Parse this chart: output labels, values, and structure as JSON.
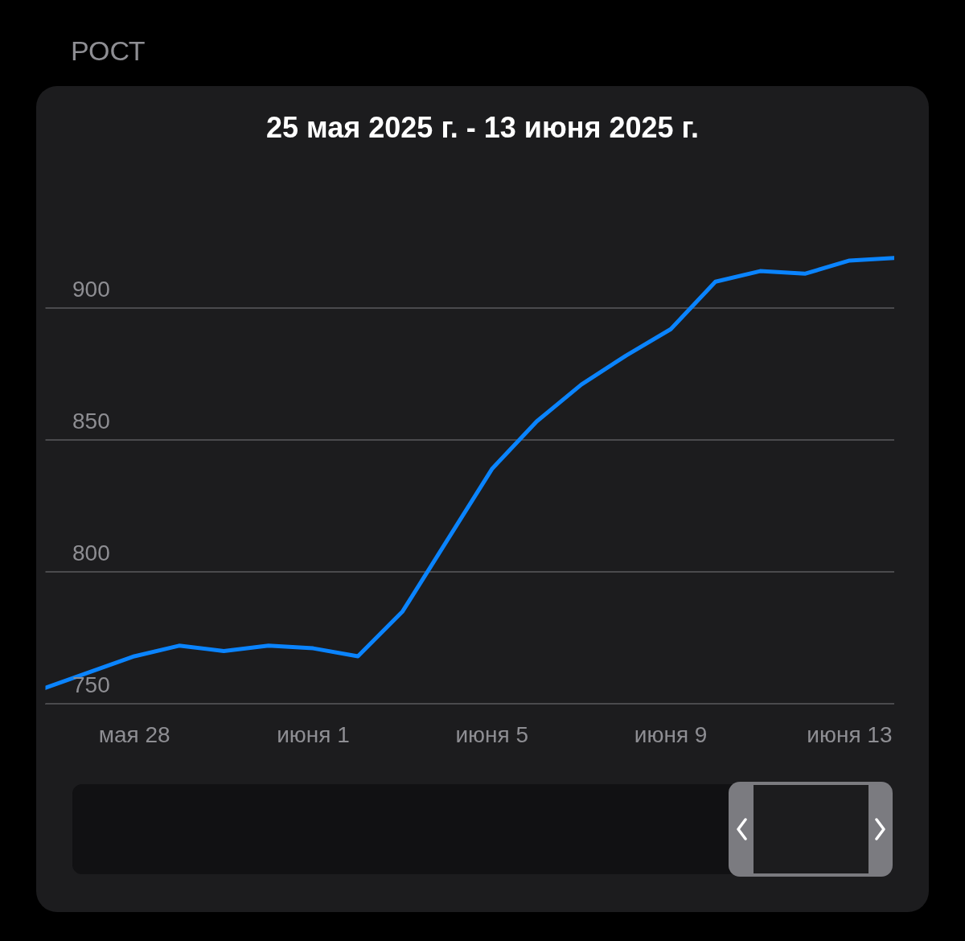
{
  "chart_data": {
    "type": "line",
    "title": "РОСТ",
    "subtitle": "25 мая 2025 г. - 13 июня 2025 г.",
    "x": [
      "2025-05-26",
      "2025-05-27",
      "2025-05-28",
      "2025-05-29",
      "2025-05-30",
      "2025-05-31",
      "2025-06-01",
      "2025-06-02",
      "2025-06-03",
      "2025-06-04",
      "2025-06-05",
      "2025-06-06",
      "2025-06-07",
      "2025-06-08",
      "2025-06-09",
      "2025-06-10",
      "2025-06-11",
      "2025-06-12",
      "2025-06-13",
      "2025-06-14"
    ],
    "series": [
      {
        "color": "#0a84ff",
        "values": [
          756,
          762,
          768,
          772,
          770,
          772,
          771,
          768,
          785,
          812,
          839,
          857,
          871,
          882,
          892,
          910,
          914,
          913,
          918,
          919
        ]
      }
    ],
    "xlim": [
      "2025-05-26",
      "2025-06-14"
    ],
    "xticks": [
      {
        "value": "2025-05-28",
        "label": "мая 28"
      },
      {
        "value": "2025-06-01",
        "label": "июня 1"
      },
      {
        "value": "2025-06-05",
        "label": "июня 5"
      },
      {
        "value": "2025-06-09",
        "label": "июня 9"
      },
      {
        "value": "2025-06-13",
        "label": "июня 13"
      }
    ],
    "ylim": [
      750,
      925
    ],
    "yticks": [
      750,
      800,
      850,
      900
    ],
    "grid": "y",
    "legend": false,
    "marker": "none",
    "line_style": "solid"
  }
}
